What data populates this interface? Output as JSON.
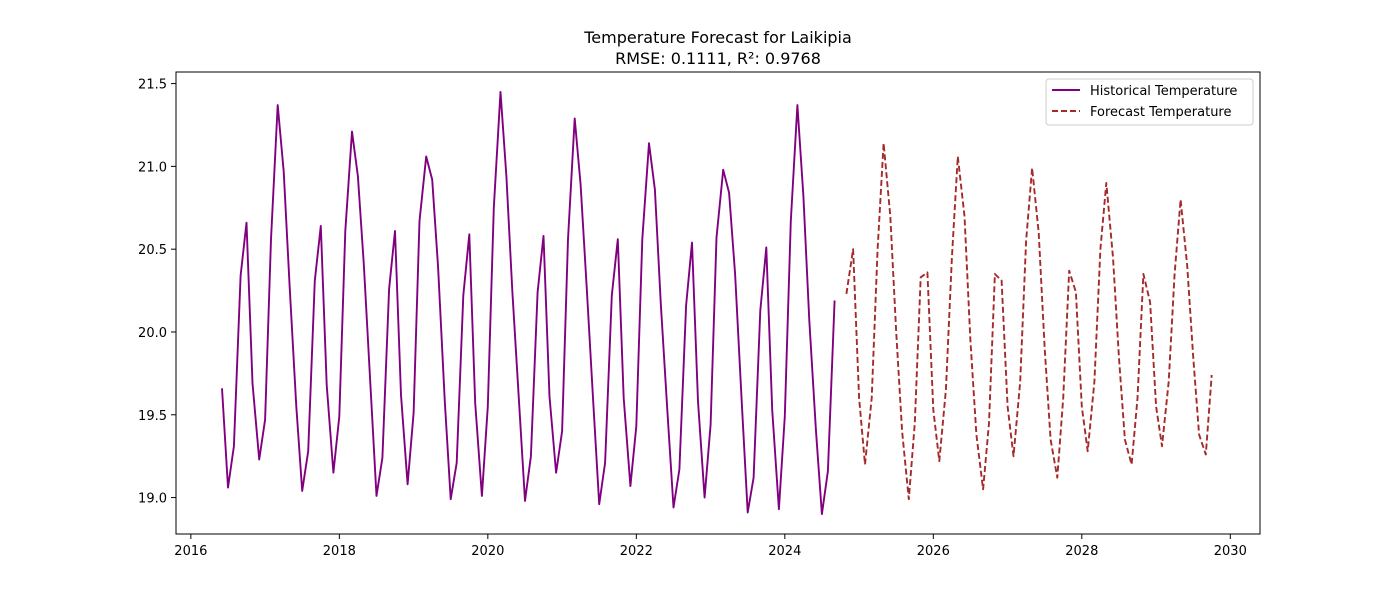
{
  "chart_data": {
    "type": "line",
    "title": "Temperature Forecast for Laikipia",
    "subtitle": "RMSE: 0.1111, R²: 0.9768",
    "xlabel": "",
    "ylabel": "",
    "xlim": [
      2015.8,
      2030.4
    ],
    "ylim": [
      18.78,
      21.57
    ],
    "x_ticks": [
      2016,
      2018,
      2020,
      2022,
      2024,
      2026,
      2028,
      2030
    ],
    "y_ticks": [
      19.0,
      19.5,
      20.0,
      20.5,
      21.0,
      21.5
    ],
    "y_tick_labels": [
      "19.0",
      "19.5",
      "20.0",
      "20.5",
      "21.0",
      "21.5"
    ],
    "grid": false,
    "legend_position": "top-right",
    "series": [
      {
        "name": "Historical Temperature",
        "color": "#800080",
        "style": "solid",
        "x": [
          2016.42,
          2016.5,
          2016.58,
          2016.67,
          2016.75,
          2016.83,
          2016.92,
          2017.0,
          2017.08,
          2017.17,
          2017.25,
          2017.33,
          2017.42,
          2017.5,
          2017.58,
          2017.67,
          2017.75,
          2017.83,
          2017.92,
          2018.0,
          2018.08,
          2018.17,
          2018.25,
          2018.33,
          2018.42,
          2018.5,
          2018.58,
          2018.67,
          2018.75,
          2018.83,
          2018.92,
          2019.0,
          2019.08,
          2019.17,
          2019.25,
          2019.33,
          2019.42,
          2019.5,
          2019.58,
          2019.67,
          2019.75,
          2019.83,
          2019.92,
          2020.0,
          2020.08,
          2020.17,
          2020.25,
          2020.33,
          2020.42,
          2020.5,
          2020.58,
          2020.67,
          2020.75,
          2020.83,
          2020.92,
          2021.0,
          2021.08,
          2021.17,
          2021.25,
          2021.33,
          2021.42,
          2021.5,
          2021.58,
          2021.67,
          2021.75,
          2021.83,
          2021.92,
          2022.0,
          2022.08,
          2022.17,
          2022.25,
          2022.33,
          2022.42,
          2022.5,
          2022.58,
          2022.67,
          2022.75,
          2022.83,
          2022.92,
          2023.0,
          2023.08,
          2023.17,
          2023.25,
          2023.33,
          2023.42,
          2023.5,
          2023.58,
          2023.67,
          2023.75,
          2023.83,
          2023.92,
          2024.0,
          2024.08,
          2024.17,
          2024.25,
          2024.33,
          2024.42,
          2024.5,
          2024.58,
          2024.67
        ],
        "values": [
          19.66,
          19.06,
          19.31,
          20.34,
          20.66,
          19.69,
          19.23,
          19.47,
          20.56,
          21.37,
          20.97,
          20.28,
          19.55,
          19.04,
          19.28,
          20.31,
          20.64,
          19.68,
          19.15,
          19.49,
          20.61,
          21.21,
          20.94,
          20.41,
          19.67,
          19.01,
          19.24,
          20.26,
          20.61,
          19.62,
          19.08,
          19.51,
          20.67,
          21.06,
          20.92,
          20.39,
          19.58,
          18.99,
          19.21,
          20.22,
          20.59,
          19.57,
          19.01,
          19.55,
          20.75,
          21.45,
          20.94,
          20.25,
          19.58,
          18.98,
          19.25,
          20.24,
          20.58,
          19.61,
          19.15,
          19.4,
          20.56,
          21.29,
          20.89,
          20.28,
          19.57,
          18.96,
          19.21,
          20.22,
          20.56,
          19.6,
          19.07,
          19.43,
          20.56,
          21.14,
          20.86,
          20.17,
          19.51,
          18.94,
          19.17,
          20.16,
          20.54,
          19.58,
          19.0,
          19.44,
          20.57,
          20.98,
          20.84,
          20.35,
          19.57,
          18.91,
          19.12,
          20.13,
          20.51,
          19.53,
          18.93,
          19.49,
          20.67,
          21.37,
          20.82,
          20.07,
          19.4,
          18.9,
          19.16,
          20.19
        ]
      },
      {
        "name": "Forecast Temperature",
        "color": "#a52a2a",
        "style": "dashed",
        "x": [
          2024.83,
          2024.92,
          2025.0,
          2025.08,
          2025.17,
          2025.25,
          2025.33,
          2025.42,
          2025.5,
          2025.58,
          2025.67,
          2025.75,
          2025.83,
          2025.92,
          2026.0,
          2026.08,
          2026.17,
          2026.25,
          2026.33,
          2026.42,
          2026.5,
          2026.58,
          2026.67,
          2026.75,
          2026.83,
          2026.92,
          2027.0,
          2027.08,
          2027.17,
          2027.25,
          2027.33,
          2027.42,
          2027.5,
          2027.58,
          2027.67,
          2027.75,
          2027.83,
          2027.92,
          2028.0,
          2028.08,
          2028.17,
          2028.25,
          2028.33,
          2028.42,
          2028.5,
          2028.58,
          2028.67,
          2028.75,
          2028.83,
          2028.92,
          2029.0,
          2029.08,
          2029.17,
          2029.25,
          2029.33,
          2029.42,
          2029.5,
          2029.58,
          2029.67,
          2029.75
        ],
        "values": [
          20.23,
          20.5,
          19.6,
          19.2,
          19.6,
          20.5,
          21.14,
          20.7,
          20.0,
          19.4,
          18.99,
          19.45,
          20.33,
          20.36,
          19.53,
          19.22,
          19.65,
          20.45,
          21.06,
          20.7,
          19.95,
          19.38,
          19.05,
          19.45,
          20.35,
          20.31,
          19.55,
          19.25,
          19.7,
          20.55,
          20.99,
          20.6,
          19.9,
          19.35,
          19.12,
          19.6,
          20.37,
          20.24,
          19.55,
          19.28,
          19.7,
          20.5,
          20.9,
          20.45,
          19.85,
          19.35,
          19.2,
          19.6,
          20.35,
          20.18,
          19.55,
          19.31,
          19.7,
          20.35,
          20.8,
          20.4,
          19.85,
          19.38,
          19.26,
          19.74
        ]
      }
    ]
  }
}
